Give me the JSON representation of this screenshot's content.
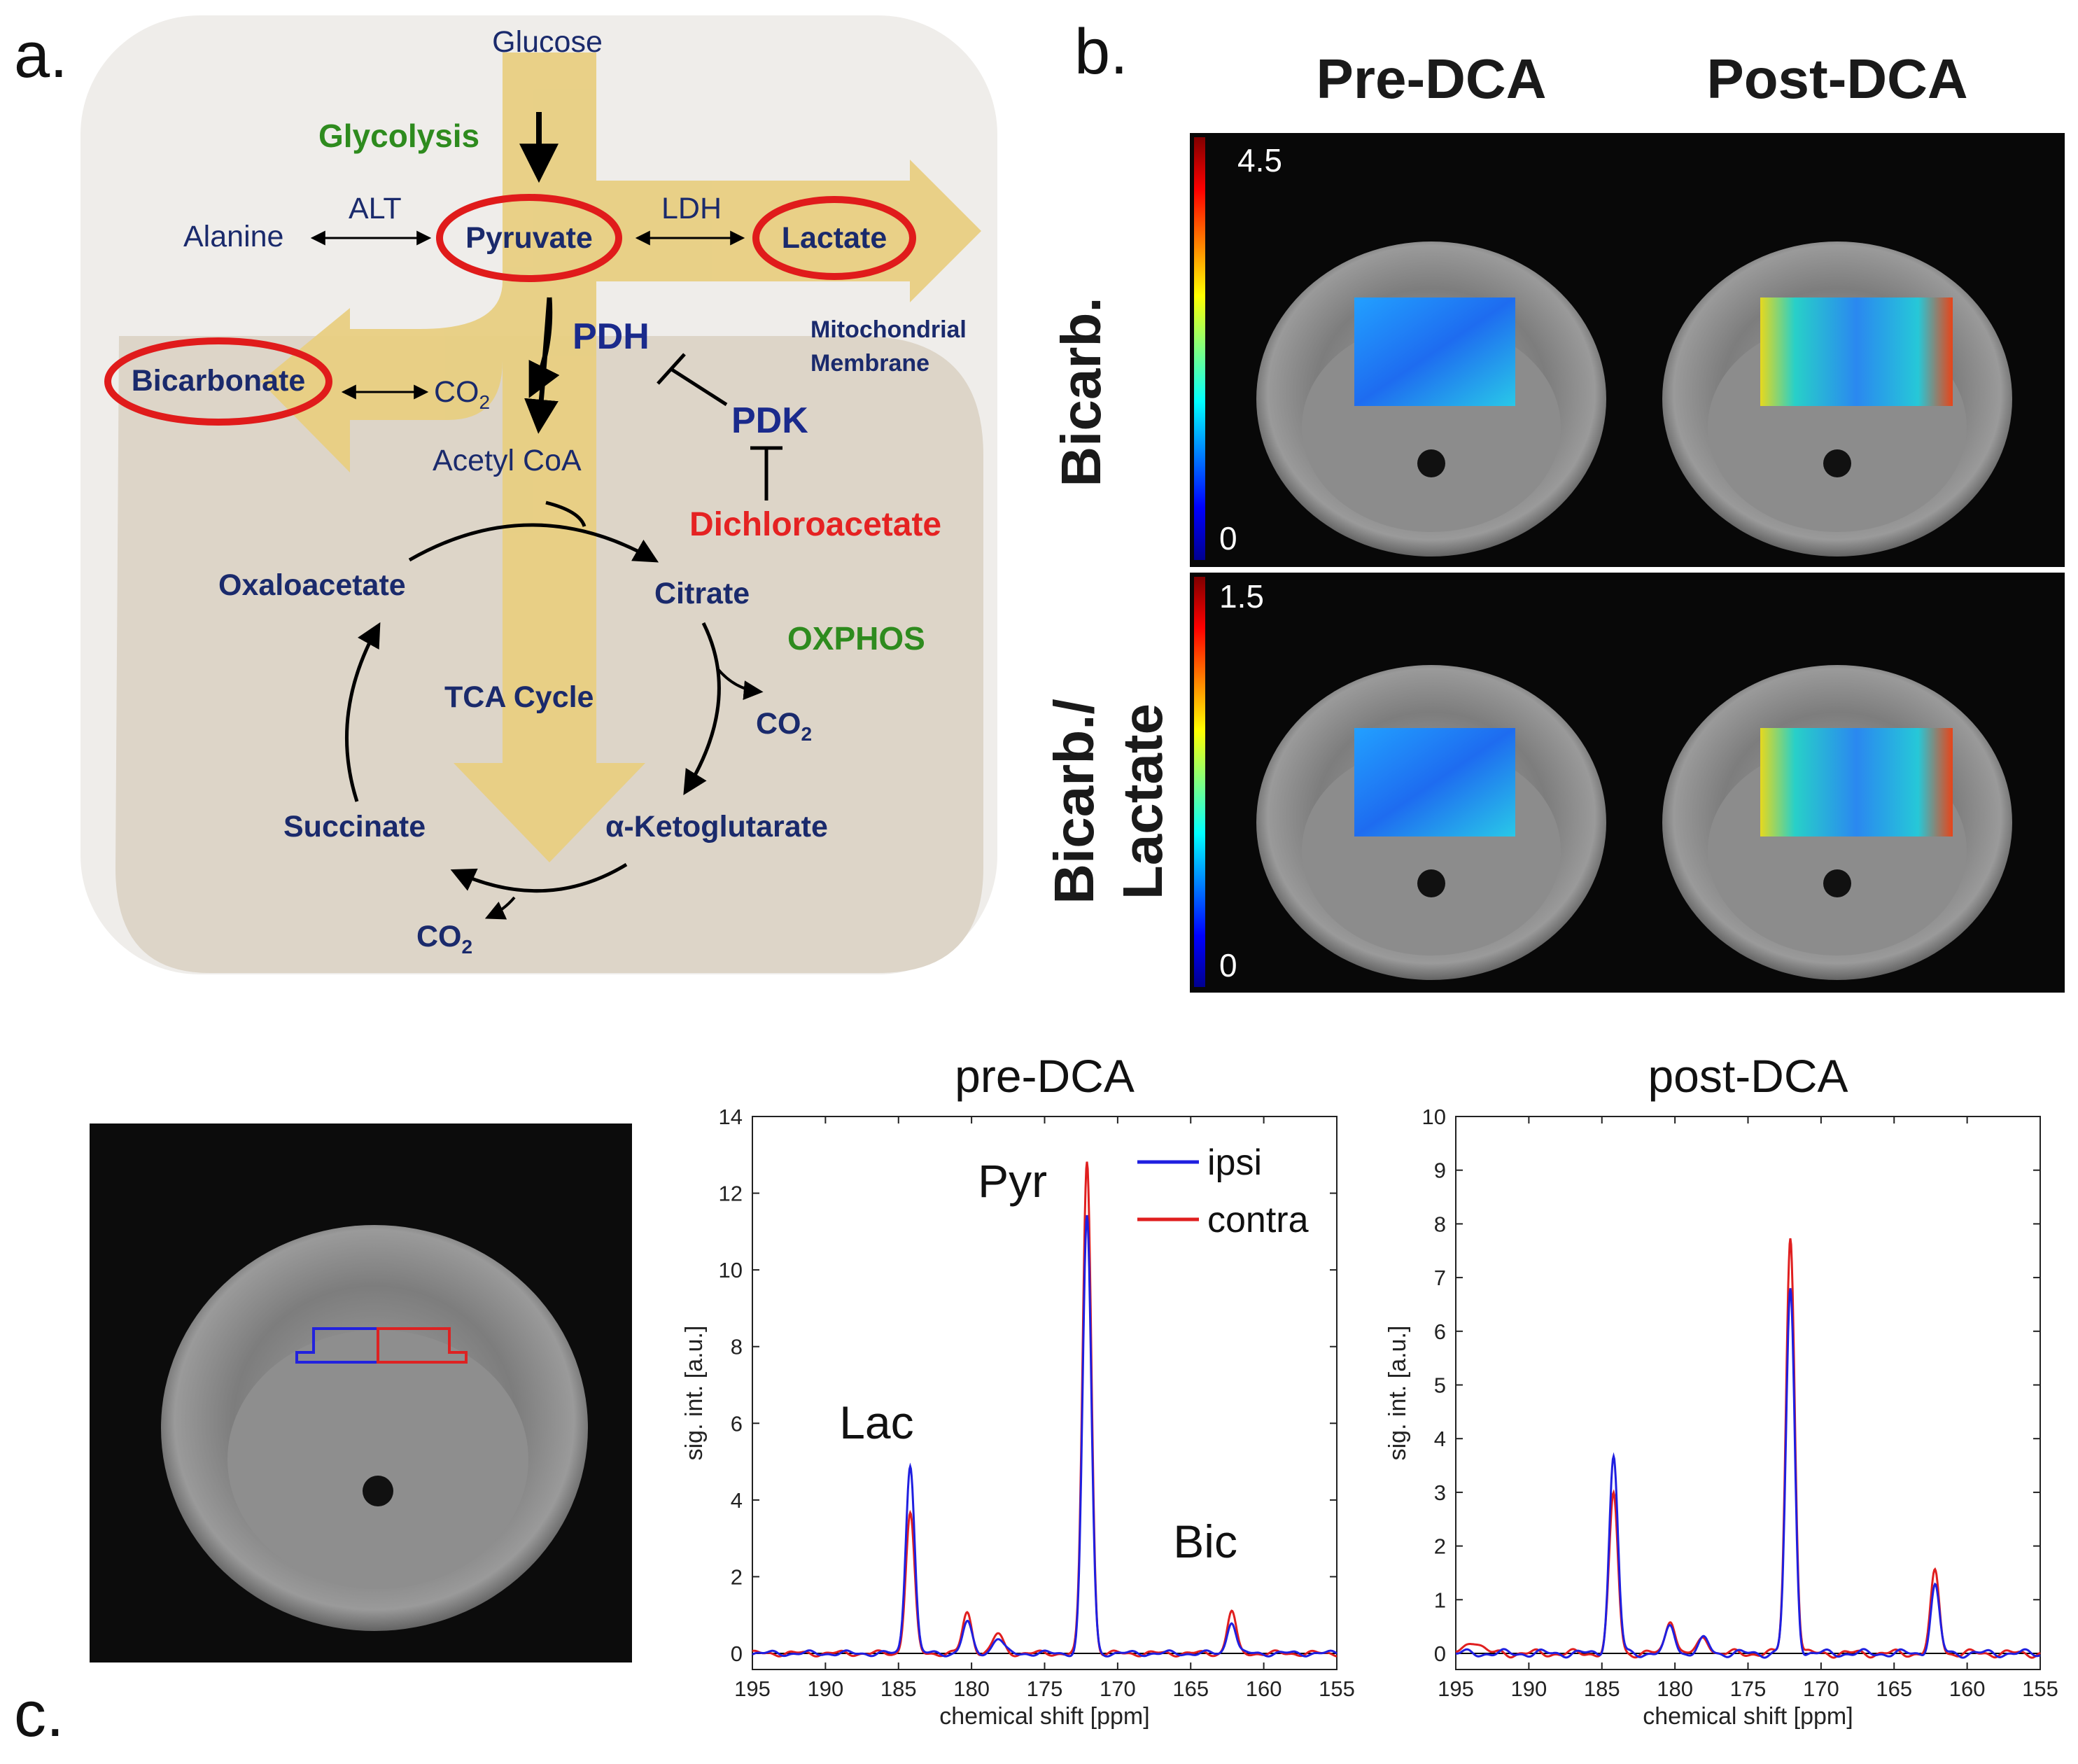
{
  "panel_labels": {
    "a": "a.",
    "b": "b.",
    "c": "c."
  },
  "diagram": {
    "glucose": "Glucose",
    "glycolysis": "Glycolysis",
    "alanine": "Alanine",
    "alt": "ALT",
    "pyruvate": "Pyruvate",
    "ldh": "LDH",
    "lactate": "Lactate",
    "pdh": "PDH",
    "mito_line1": "Mitochondrial",
    "mito_line2": "Membrane",
    "bicarbonate": "Bicarbonate",
    "co2_main": "CO",
    "co2_sub": "2",
    "pdk": "PDK",
    "acetyl_coa": "Acetyl CoA",
    "dichloroacetate": "Dichloroacetate",
    "oxaloacetate": "Oxaloacetate",
    "citrate": "Citrate",
    "oxphos": "OXPHOS",
    "tca_cycle": "TCA Cycle",
    "succinate": "Succinate",
    "akg": "α-Ketoglutarate",
    "colors": {
      "arrow": "#e8cf82",
      "ring": "#e01b1b",
      "cytosol": "#efedea",
      "mito": "#ddd5c8"
    }
  },
  "panel_b": {
    "col_pre": "Pre-DCA",
    "col_post": "Post-DCA",
    "row_bicarb": "Bicarb.",
    "row_ratio_line1": "Bicarb./",
    "row_ratio_line2": "Lactate",
    "scale_top_max": "4.5",
    "scale_top_min": "0",
    "scale_bottom_max": "1.5",
    "scale_bottom_min": "0"
  },
  "roi": {
    "ipsi_color": "#2222dd",
    "contra_color": "#dd2222"
  },
  "chart_data": [
    {
      "type": "line",
      "title": "pre-DCA",
      "xlabel": "chemical shift [ppm]",
      "ylabel": "sig. int. [a.u.]",
      "xlim": [
        195,
        155
      ],
      "ylim": [
        0,
        14
      ],
      "xticks": [
        195,
        190,
        185,
        180,
        175,
        170,
        165,
        160,
        155
      ],
      "yticks": [
        0,
        2,
        4,
        6,
        8,
        10,
        12,
        14
      ],
      "annotations": [
        {
          "text": "Lac",
          "x": 186.5,
          "y": 5.6
        },
        {
          "text": "Pyr",
          "x": 177.2,
          "y": 11.9
        },
        {
          "text": "Bic",
          "x": 164.0,
          "y": 2.5
        }
      ],
      "legend": {
        "position": "top-right",
        "entries": [
          "ipsi",
          "contra"
        ]
      },
      "series": [
        {
          "name": "ipsi",
          "color": "#1f1fe0",
          "peaks": [
            [
              184.2,
              4.95,
              0.42
            ],
            [
              180.3,
              0.8,
              0.45
            ],
            [
              178.2,
              0.4,
              0.5
            ],
            [
              172.1,
              11.4,
              0.42
            ],
            [
              162.2,
              0.85,
              0.42
            ]
          ]
        },
        {
          "name": "contra",
          "color": "#e01f1f",
          "peaks": [
            [
              184.2,
              3.65,
              0.42
            ],
            [
              180.3,
              1.05,
              0.45
            ],
            [
              178.2,
              0.5,
              0.5
            ],
            [
              172.1,
              12.85,
              0.42
            ],
            [
              162.2,
              1.1,
              0.42
            ]
          ]
        }
      ]
    },
    {
      "type": "line",
      "title": "post-DCA",
      "xlabel": "chemical shift [ppm]",
      "ylabel": "sig. int. [a.u.]",
      "xlim": [
        195,
        155
      ],
      "ylim": [
        0,
        10
      ],
      "xticks": [
        195,
        190,
        185,
        180,
        175,
        170,
        165,
        160,
        155
      ],
      "yticks": [
        0,
        1,
        2,
        3,
        4,
        5,
        6,
        7,
        8,
        9,
        10
      ],
      "series": [
        {
          "name": "ipsi",
          "color": "#1f1fe0",
          "peaks": [
            [
              184.2,
              3.65,
              0.42
            ],
            [
              180.3,
              0.5,
              0.45
            ],
            [
              178.0,
              0.25,
              0.5
            ],
            [
              172.1,
              6.75,
              0.42
            ],
            [
              162.2,
              1.25,
              0.42
            ]
          ]
        },
        {
          "name": "contra",
          "color": "#e01f1f",
          "peaks": [
            [
              184.2,
              2.95,
              0.42
            ],
            [
              180.3,
              0.65,
              0.45
            ],
            [
              178.0,
              0.3,
              0.5
            ],
            [
              172.1,
              7.75,
              0.42
            ],
            [
              162.2,
              1.5,
              0.42
            ],
            [
              193.8,
              0.25,
              0.7
            ]
          ]
        }
      ]
    }
  ]
}
